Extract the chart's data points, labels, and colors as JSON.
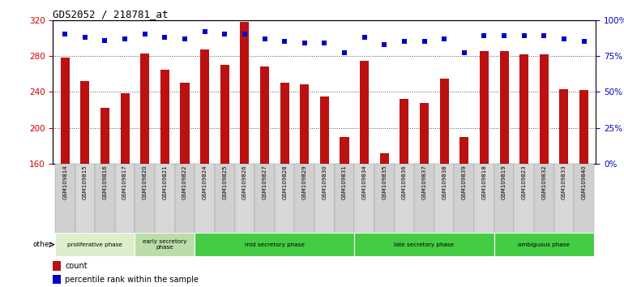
{
  "title": "GDS2052 / 218781_at",
  "samples": [
    "GSM109814",
    "GSM109815",
    "GSM109816",
    "GSM109817",
    "GSM109820",
    "GSM109821",
    "GSM109822",
    "GSM109824",
    "GSM109825",
    "GSM109826",
    "GSM109827",
    "GSM109828",
    "GSM109829",
    "GSM109830",
    "GSM109831",
    "GSM109834",
    "GSM109835",
    "GSM109836",
    "GSM109837",
    "GSM109838",
    "GSM109839",
    "GSM109818",
    "GSM109819",
    "GSM109823",
    "GSM109832",
    "GSM109833",
    "GSM109840"
  ],
  "counts": [
    278,
    252,
    222,
    238,
    283,
    265,
    250,
    287,
    270,
    318,
    268,
    250,
    248,
    235,
    190,
    275,
    172,
    232,
    228,
    255,
    190,
    285,
    285,
    282,
    282,
    243,
    242
  ],
  "percentiles": [
    90,
    88,
    86,
    87,
    90,
    88,
    87,
    92,
    90,
    90,
    87,
    85,
    84,
    84,
    77,
    88,
    83,
    85,
    85,
    87,
    77,
    89,
    89,
    89,
    89,
    87,
    85
  ],
  "ylim_left": [
    160,
    320
  ],
  "ylim_right": [
    0,
    100
  ],
  "yticks_left": [
    160,
    200,
    240,
    280,
    320
  ],
  "yticks_right": [
    0,
    25,
    50,
    75,
    100
  ],
  "bar_color": "#bb1111",
  "dot_color": "#0000cc",
  "bg_color": "#ffffff",
  "grid_color": "#555555",
  "phases_info": [
    {
      "label": "proliferative phase",
      "start": 0,
      "end": 4,
      "color": "#ddeecc"
    },
    {
      "label": "early secretory\nphase",
      "start": 4,
      "end": 7,
      "color": "#bbddaa"
    },
    {
      "label": "mid secretory phase",
      "start": 7,
      "end": 15,
      "color": "#44cc44"
    },
    {
      "label": "late secretory phase",
      "start": 15,
      "end": 22,
      "color": "#44cc44"
    },
    {
      "label": "ambiguous phase",
      "start": 22,
      "end": 27,
      "color": "#44cc44"
    }
  ]
}
